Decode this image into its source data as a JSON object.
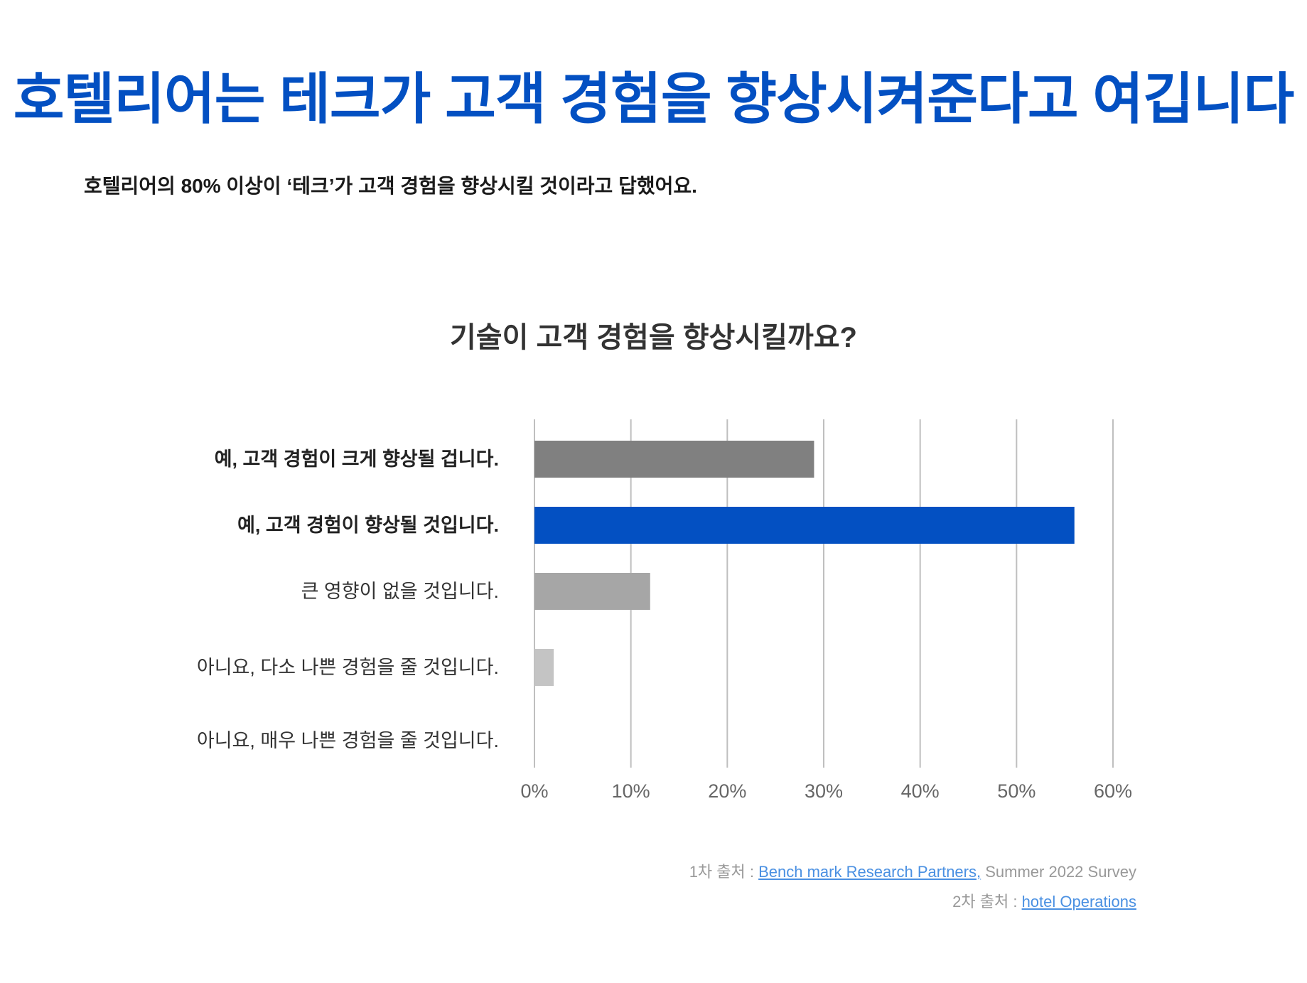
{
  "headline": "호텔리어는 테크가 고객 경험을 향상시켜준다고 여깁니다",
  "subtitle": "호텔리어의 80% 이상이 ‘테크’가 고객 경험을 향상시킬 것이라고 답했어요.",
  "chart_data": {
    "type": "bar",
    "orientation": "horizontal",
    "title": "기술이 고객 경험을 향상시킬까요?",
    "categories": [
      "예, 고객 경험이 크게 향상될 겁니다.",
      "예, 고객 경험이 향상될 것입니다.",
      "큰 영향이 없을 것입니다.",
      "아니요, 다소 나쁜 경험을 줄 것입니다.",
      "아니요, 매우 나쁜 경험을 줄 것입니다."
    ],
    "values": [
      29,
      56,
      12,
      2,
      0
    ],
    "bar_colors": [
      "#808080",
      "#0350c2",
      "#a6a6a6",
      "#c4c4c4",
      "#d0d0d0"
    ],
    "label_bold": [
      true,
      true,
      false,
      false,
      false
    ],
    "xlim": [
      0,
      60
    ],
    "xticks": [
      0,
      10,
      20,
      30,
      40,
      50,
      60
    ],
    "xtick_labels": [
      "0%",
      "10%",
      "20%",
      "30%",
      "40%",
      "50%",
      "60%"
    ],
    "grid": true,
    "grid_color": "#bfbfbf"
  },
  "sources": {
    "first_prefix": "1차 출처 : ",
    "first_link": "Bench mark Research Partners,",
    "first_suffix": " Summer 2022 Survey",
    "second_prefix": "2차 출처 : ",
    "second_link": "hotel Operations"
  }
}
